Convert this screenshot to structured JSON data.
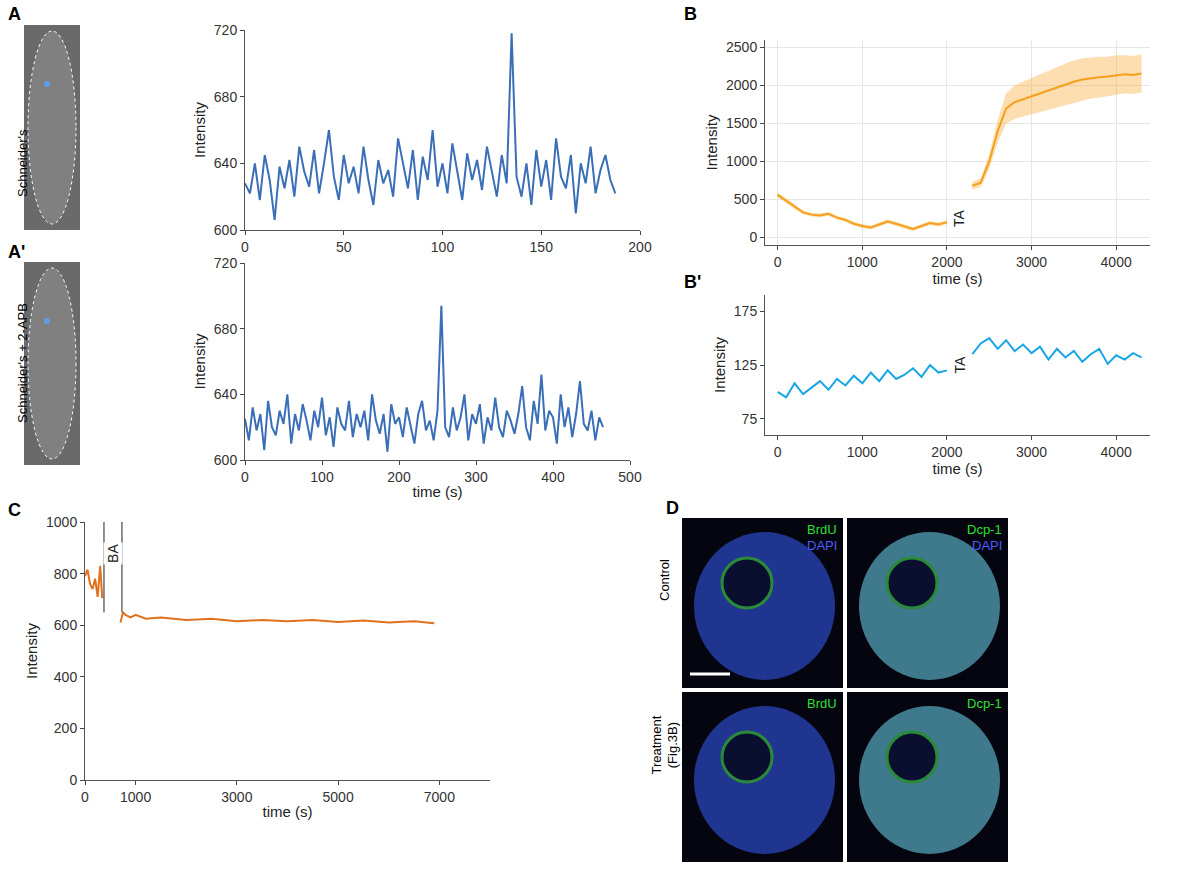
{
  "chart_data": [
    {
      "panel": "A",
      "type": "line",
      "image_label": "Schneider's",
      "color": "#3a6fb7",
      "ylabel": "Intensity",
      "x": [
        0,
        2.5,
        5,
        7.5,
        10,
        12.5,
        15,
        17.5,
        20,
        22.5,
        25,
        27.5,
        30,
        32.5,
        35,
        37.5,
        40,
        42.5,
        45,
        47.5,
        50,
        52.5,
        55,
        57.5,
        60,
        62.5,
        65,
        67.5,
        70,
        72.5,
        75,
        77.5,
        80,
        82.5,
        85,
        87.5,
        90,
        92.5,
        95,
        97.5,
        100,
        102.5,
        105,
        107.5,
        110,
        112.5,
        115,
        117.5,
        120,
        122.5,
        125,
        127.5,
        130,
        132.5,
        135,
        137.5,
        140,
        142.5,
        145,
        147.5,
        150,
        152.5,
        155,
        157.5,
        160,
        162.5,
        165,
        167.5,
        170,
        172.5,
        175,
        177.5,
        180,
        182.5,
        185,
        187.5
      ],
      "values": [
        628,
        622,
        640,
        618,
        645,
        630,
        606,
        638,
        625,
        642,
        620,
        650,
        635,
        626,
        648,
        622,
        640,
        660,
        632,
        618,
        645,
        628,
        638,
        622,
        650,
        630,
        615,
        642,
        628,
        636,
        620,
        655,
        640,
        625,
        648,
        618,
        644,
        630,
        660,
        626,
        640,
        622,
        652,
        634,
        618,
        646,
        630,
        642,
        624,
        650,
        636,
        620,
        645,
        628,
        718,
        632,
        620,
        640,
        615,
        648,
        626,
        642,
        618,
        655,
        632,
        625,
        645,
        610,
        640,
        628,
        650,
        622,
        636,
        645,
        630,
        622
      ],
      "xlim": [
        0,
        200
      ],
      "xticks": [
        0,
        50,
        100,
        150,
        200
      ],
      "ylim": [
        600,
        720
      ],
      "yticks": [
        600,
        640,
        680,
        720
      ],
      "grid": false
    },
    {
      "panel": "A'",
      "type": "line",
      "image_label": "Schneider's + 2-APB",
      "color": "#3a6fb7",
      "ylabel": "Intensity",
      "xlabel": "time (s)",
      "x": [
        0,
        5,
        10,
        15,
        20,
        25,
        30,
        35,
        40,
        45,
        50,
        55,
        60,
        65,
        70,
        75,
        80,
        85,
        90,
        95,
        100,
        105,
        110,
        115,
        120,
        125,
        130,
        135,
        140,
        145,
        150,
        155,
        160,
        165,
        170,
        175,
        180,
        185,
        190,
        195,
        200,
        205,
        210,
        215,
        220,
        225,
        230,
        235,
        240,
        245,
        250,
        255,
        260,
        265,
        270,
        275,
        280,
        285,
        290,
        295,
        300,
        305,
        310,
        315,
        320,
        325,
        330,
        335,
        340,
        345,
        350,
        355,
        360,
        365,
        370,
        375,
        380,
        385,
        390,
        395,
        400,
        405,
        410,
        415,
        420,
        425,
        430,
        435,
        440,
        445,
        450,
        455,
        460,
        465
      ],
      "values": [
        625,
        612,
        632,
        618,
        628,
        606,
        636,
        620,
        615,
        630,
        622,
        640,
        610,
        628,
        618,
        634,
        624,
        612,
        630,
        620,
        638,
        615,
        626,
        608,
        632,
        622,
        618,
        636,
        614,
        628,
        620,
        630,
        612,
        640,
        624,
        616,
        628,
        605,
        634,
        622,
        626,
        614,
        632,
        620,
        610,
        628,
        636,
        618,
        624,
        612,
        630,
        694,
        620,
        614,
        632,
        618,
        626,
        640,
        612,
        628,
        622,
        634,
        610,
        626,
        618,
        638,
        620,
        614,
        630,
        624,
        616,
        628,
        645,
        620,
        612,
        636,
        622,
        652,
        618,
        630,
        626,
        610,
        640,
        620,
        632,
        614,
        628,
        648,
        622,
        618,
        630,
        612,
        626,
        620
      ],
      "xlim": [
        0,
        500
      ],
      "xticks": [
        0,
        100,
        200,
        300,
        400,
        500
      ],
      "ylim": [
        600,
        720
      ],
      "yticks": [
        600,
        640,
        680,
        720
      ],
      "grid": false
    },
    {
      "panel": "B",
      "type": "line",
      "color": "#f5a01e",
      "ylabel": "Intensity",
      "xlabel": "time (s)",
      "x": [
        0,
        100,
        200,
        300,
        400,
        500,
        600,
        700,
        800,
        900,
        1000,
        1100,
        1200,
        1300,
        1400,
        1500,
        1600,
        1700,
        1800,
        1900,
        2000,
        2150,
        2300,
        2400,
        2500,
        2600,
        2700,
        2800,
        2900,
        3000,
        3100,
        3200,
        3300,
        3400,
        3500,
        3600,
        3700,
        3800,
        3900,
        4000,
        4100,
        4200,
        4300
      ],
      "values": [
        560,
        480,
        400,
        330,
        300,
        290,
        310,
        260,
        230,
        180,
        150,
        130,
        170,
        210,
        180,
        140,
        110,
        150,
        190,
        170,
        200,
        null,
        680,
        720,
        1000,
        1400,
        1700,
        1780,
        1820,
        1860,
        1900,
        1940,
        1980,
        2020,
        2050,
        2080,
        2100,
        2110,
        2120,
        2140,
        2150,
        2140,
        2160
      ],
      "error": [
        30,
        30,
        25,
        25,
        25,
        25,
        25,
        25,
        25,
        25,
        25,
        25,
        25,
        25,
        25,
        25,
        25,
        25,
        25,
        25,
        25,
        null,
        50,
        60,
        100,
        150,
        200,
        220,
        230,
        240,
        250,
        260,
        260,
        270,
        280,
        280,
        270,
        270,
        260,
        260,
        250,
        250,
        250
      ],
      "annotations": [
        {
          "text": "TA",
          "x": 2150,
          "y": 250
        }
      ],
      "xlim": [
        -150,
        4400
      ],
      "xticks": [
        0,
        1000,
        2000,
        3000,
        4000
      ],
      "ylim": [
        -100,
        2600
      ],
      "yticks": [
        0,
        500,
        1000,
        1500,
        2000,
        2500
      ],
      "grid": true
    },
    {
      "panel": "B'",
      "type": "line",
      "color": "#1aa6e4",
      "ylabel": "Intensity",
      "xlabel": "time (s)",
      "x": [
        0,
        100,
        200,
        300,
        400,
        500,
        600,
        700,
        800,
        900,
        1000,
        1100,
        1200,
        1300,
        1400,
        1500,
        1600,
        1700,
        1800,
        1900,
        2000,
        2150,
        2300,
        2400,
        2500,
        2600,
        2700,
        2800,
        2900,
        3000,
        3100,
        3200,
        3300,
        3400,
        3500,
        3600,
        3700,
        3800,
        3900,
        4000,
        4100,
        4200,
        4300
      ],
      "values": [
        100,
        95,
        108,
        98,
        104,
        110,
        102,
        112,
        106,
        115,
        108,
        118,
        110,
        120,
        112,
        116,
        122,
        114,
        125,
        118,
        120,
        null,
        135,
        145,
        150,
        140,
        148,
        138,
        144,
        136,
        142,
        130,
        140,
        132,
        138,
        128,
        135,
        140,
        126,
        134,
        130,
        136,
        132
      ],
      "annotations": [
        {
          "text": "TA",
          "x": 2150,
          "y": 125
        }
      ],
      "xlim": [
        -150,
        4400
      ],
      "xticks": [
        0,
        1000,
        2000,
        3000,
        4000
      ],
      "ylim": [
        60,
        190
      ],
      "yticks": [
        75,
        125,
        175
      ],
      "grid": false
    },
    {
      "panel": "C",
      "type": "line",
      "color": "#e2711d",
      "ylabel": "Intensity",
      "xlabel": "time (s)",
      "x": [
        0,
        50,
        100,
        150,
        200,
        250,
        300,
        340,
        500,
        700,
        750,
        800,
        900,
        1000,
        1200,
        1500,
        2000,
        2500,
        3000,
        3500,
        4000,
        4500,
        5000,
        5500,
        6000,
        6500,
        6900
      ],
      "values": [
        790,
        815,
        760,
        740,
        780,
        710,
        830,
        705,
        null,
        610,
        650,
        640,
        630,
        640,
        625,
        630,
        620,
        625,
        615,
        620,
        615,
        620,
        612,
        618,
        610,
        615,
        608
      ],
      "annotations": [
        {
          "text": "BA",
          "x": 552,
          "y": 880,
          "span": [
            375,
            730
          ]
        }
      ],
      "xlim": [
        0,
        8000
      ],
      "xticks": [
        0,
        1000,
        3000,
        5000,
        7000
      ],
      "ylim": [
        0,
        1000
      ],
      "yticks": [
        0,
        200,
        400,
        600,
        800,
        1000
      ],
      "grid": false
    }
  ],
  "micrographs": {
    "panel": "D",
    "rows": [
      "Control",
      "Treatment (Fig.3B)"
    ],
    "columns": [
      {
        "stain": "BrdU",
        "counterstain": "DAPI"
      },
      {
        "stain": "Dcp-1",
        "counterstain": "DAPI"
      }
    ]
  }
}
